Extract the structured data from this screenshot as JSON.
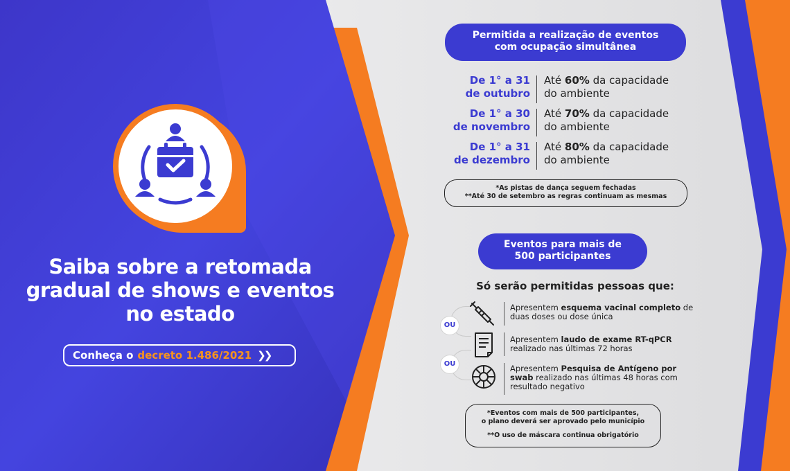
{
  "left": {
    "icon_name": "event-calendar-people-icon",
    "headline": [
      "Saiba sobre a retomada",
      "gradual de shows e eventos",
      "no estado"
    ],
    "decree_button": {
      "prefix": "Conheça o",
      "highlight": "decreto 1.486/2021",
      "chevron": "❯❯"
    }
  },
  "capacity": {
    "title_line1": "Permitida a realização de eventos",
    "title_line2": "com ocupação simultânea",
    "rows": [
      {
        "period_line1": "De 1° a 31",
        "period_line2": "de outubro",
        "pre": "Até ",
        "pct": "60%",
        "post": " da capacidade",
        "line2": "do ambiente"
      },
      {
        "period_line1": "De 1° a 30",
        "period_line2": "de novembro",
        "pre": "Até ",
        "pct": "70%",
        "post": " da capacidade",
        "line2": "do ambiente"
      },
      {
        "period_line1": "De 1° a 31",
        "period_line2": "de dezembro",
        "pre": "Até ",
        "pct": "80%",
        "post": " da capacidade",
        "line2": "do ambiente"
      }
    ],
    "notes": [
      "*As pistas de dança seguem fechadas",
      "**Até 30 de setembro as regras continuam as mesmas"
    ]
  },
  "large_events": {
    "title_line1": "Eventos para mais de",
    "title_line2": "500 participantes",
    "subtitle": "Só serão permitidas pessoas que:",
    "or_label": "OU",
    "requirements": [
      {
        "icon": "syringe-icon",
        "pre": "Apresentem ",
        "bold": "esquema vacinal completo",
        "post": " de duas doses ou dose única"
      },
      {
        "icon": "document-icon",
        "pre": "Apresentem ",
        "bold": "laudo de exame RT-qPCR",
        "post": " realizado nas últimas 72 horas"
      },
      {
        "icon": "virus-test-icon",
        "pre": "Apresentem ",
        "bold": "Pesquisa de Antígeno por swab",
        "post": " realizado nas últimas 48 horas com resultado negativo"
      }
    ],
    "notes": [
      "*Eventos com mais de 500 participantes,",
      "o plano deverá ser aprovado pelo município",
      "**O uso de máscara continua obrigatório"
    ]
  },
  "colors": {
    "blue": "#3b3bd1",
    "orange": "#f57c21",
    "grey": "#e9e9ea"
  }
}
